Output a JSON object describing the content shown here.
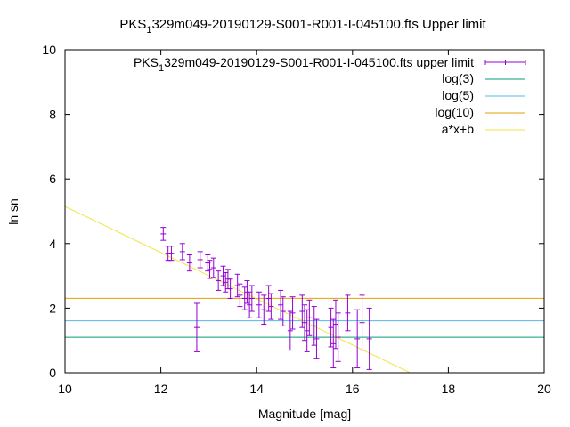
{
  "chart_data": {
    "type": "scatter",
    "title": {
      "prefix": "PKS",
      "sub": "1",
      "rest": "329m049-20190129-S001-R001-I-045100.fts Upper limit"
    },
    "xlabel": "Magnitude [mag]",
    "ylabel": "ln sn",
    "xlim": [
      10,
      20
    ],
    "ylim": [
      0,
      10
    ],
    "xticks": [
      10,
      12,
      14,
      16,
      18,
      20
    ],
    "yticks": [
      0,
      2,
      4,
      6,
      8,
      10
    ],
    "legend_position": "top-right",
    "series": [
      {
        "name": "PKS_1329m049-20190129-S001-R001-I-045100.fts upper limit",
        "legend_prefix": "PKS",
        "legend_sub": "1",
        "legend_rest": "329m049-20190129-S001-R001-I-045100.fts upper limit",
        "kind": "errorbars",
        "color": "#9400d3",
        "points": [
          {
            "x": 12.05,
            "y": 4.3,
            "err": 0.2
          },
          {
            "x": 12.15,
            "y": 3.7,
            "err": 0.22
          },
          {
            "x": 12.22,
            "y": 3.7,
            "err": 0.22
          },
          {
            "x": 12.45,
            "y": 3.75,
            "err": 0.25
          },
          {
            "x": 12.6,
            "y": 3.4,
            "err": 0.25
          },
          {
            "x": 12.75,
            "y": 1.4,
            "err": 0.75
          },
          {
            "x": 12.82,
            "y": 3.5,
            "err": 0.25
          },
          {
            "x": 12.98,
            "y": 3.4,
            "err": 0.25
          },
          {
            "x": 13.02,
            "y": 3.2,
            "err": 0.28
          },
          {
            "x": 13.1,
            "y": 3.25,
            "err": 0.3
          },
          {
            "x": 13.2,
            "y": 2.85,
            "err": 0.3
          },
          {
            "x": 13.3,
            "y": 3.0,
            "err": 0.3
          },
          {
            "x": 13.35,
            "y": 2.8,
            "err": 0.3
          },
          {
            "x": 13.4,
            "y": 2.9,
            "err": 0.3
          },
          {
            "x": 13.45,
            "y": 2.6,
            "err": 0.3
          },
          {
            "x": 13.6,
            "y": 2.7,
            "err": 0.35
          },
          {
            "x": 13.65,
            "y": 2.4,
            "err": 0.35
          },
          {
            "x": 13.75,
            "y": 2.3,
            "err": 0.35
          },
          {
            "x": 13.8,
            "y": 2.5,
            "err": 0.35
          },
          {
            "x": 13.85,
            "y": 2.1,
            "err": 0.4
          },
          {
            "x": 13.9,
            "y": 2.3,
            "err": 0.4
          },
          {
            "x": 14.05,
            "y": 2.1,
            "err": 0.4
          },
          {
            "x": 14.15,
            "y": 1.95,
            "err": 0.45
          },
          {
            "x": 14.25,
            "y": 2.3,
            "err": 0.4
          },
          {
            "x": 14.3,
            "y": 2.05,
            "err": 0.4
          },
          {
            "x": 14.5,
            "y": 2.1,
            "err": 0.45
          },
          {
            "x": 14.55,
            "y": 1.9,
            "err": 0.45
          },
          {
            "x": 14.7,
            "y": 1.3,
            "err": 0.6
          },
          {
            "x": 14.75,
            "y": 1.85,
            "err": 0.5
          },
          {
            "x": 14.95,
            "y": 1.9,
            "err": 0.5
          },
          {
            "x": 15.0,
            "y": 1.55,
            "err": 0.55
          },
          {
            "x": 15.05,
            "y": 1.3,
            "err": 0.65
          },
          {
            "x": 15.1,
            "y": 1.7,
            "err": 0.55
          },
          {
            "x": 15.2,
            "y": 1.45,
            "err": 0.6
          },
          {
            "x": 15.25,
            "y": 1.05,
            "err": 0.6
          },
          {
            "x": 15.55,
            "y": 1.4,
            "err": 0.6
          },
          {
            "x": 15.6,
            "y": 0.9,
            "err": 0.75
          },
          {
            "x": 15.65,
            "y": 1.5,
            "err": 0.75
          },
          {
            "x": 15.7,
            "y": 1.1,
            "err": 0.75
          },
          {
            "x": 15.9,
            "y": 1.85,
            "err": 0.55
          },
          {
            "x": 16.1,
            "y": 1.05,
            "err": 0.9
          },
          {
            "x": 16.2,
            "y": 1.55,
            "err": 0.85
          },
          {
            "x": 16.35,
            "y": 1.05,
            "err": 0.95
          }
        ]
      },
      {
        "name": "log(3)",
        "kind": "hline",
        "color": "#009e73",
        "y": 1.0986
      },
      {
        "name": "log(5)",
        "kind": "hline",
        "color": "#56b4e9",
        "y": 1.6094
      },
      {
        "name": "log(10)",
        "kind": "hline",
        "color": "#e69f00",
        "y": 2.3026
      },
      {
        "name": "a*x+b",
        "kind": "line",
        "color": "#f0e442",
        "slope": -0.715,
        "intercept": 12.3
      }
    ]
  }
}
